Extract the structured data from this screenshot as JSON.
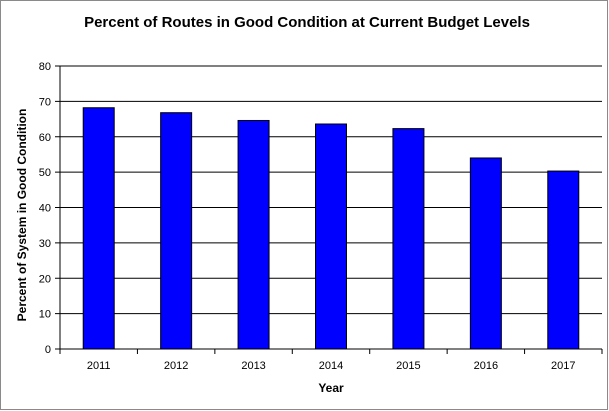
{
  "chart_data": {
    "type": "bar",
    "title": "Percent of Routes in Good Condition at Current Budget Levels",
    "xlabel": "Year",
    "ylabel": "Percent of System in Good Condition",
    "categories": [
      "2011",
      "2012",
      "2013",
      "2014",
      "2015",
      "2016",
      "2017"
    ],
    "values": [
      68.2,
      66.8,
      64.6,
      63.6,
      62.3,
      54.0,
      50.3
    ],
    "ylim": [
      0,
      80
    ],
    "yticks": [
      0,
      10,
      20,
      30,
      40,
      50,
      60,
      70,
      80
    ],
    "grid": true,
    "legend": "none",
    "colors": {
      "bar_fill": "#0000ff",
      "bar_stroke": "#000000",
      "grid": "#000000",
      "frame": "#8a8a8a"
    }
  }
}
